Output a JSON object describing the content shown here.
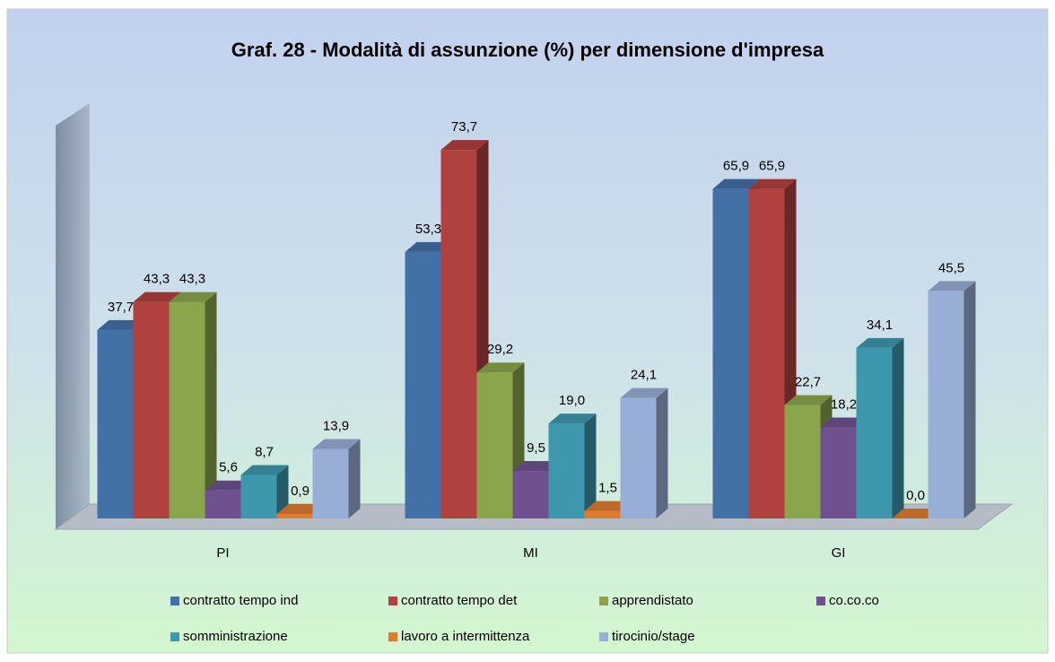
{
  "chart_data": {
    "type": "bar3d",
    "title": "Graf. 28 - Modalità di assunzione (%) per dimensione d'impresa",
    "categories": [
      "PI",
      "MI",
      "GI"
    ],
    "ylim": [
      0,
      80
    ],
    "legend": "bottom",
    "series": [
      {
        "name": "contratto tempo ind",
        "color": "#4470a8",
        "values": [
          37.7,
          53.3,
          65.9
        ],
        "value_labels": [
          "37,7",
          "53,3",
          "65,9"
        ]
      },
      {
        "name": "contratto tempo det",
        "color": "#b0413e",
        "values": [
          43.3,
          73.7,
          65.9
        ],
        "value_labels": [
          "43,3",
          "73,7",
          "65,9"
        ]
      },
      {
        "name": "apprendistato",
        "color": "#8ba54c",
        "values": [
          43.3,
          29.2,
          22.7
        ],
        "value_labels": [
          "43,3",
          "29,2",
          "22,7"
        ]
      },
      {
        "name": "co.co.co",
        "color": "#6f5190",
        "values": [
          5.6,
          9.5,
          18.2
        ],
        "value_labels": [
          "5,6",
          "9,5",
          "18,2"
        ]
      },
      {
        "name": "somministrazione",
        "color": "#3e98ad",
        "values": [
          8.7,
          19.0,
          34.1
        ],
        "value_labels": [
          "8,7",
          "19,0",
          "34,1"
        ]
      },
      {
        "name": "lavoro a intermittenza",
        "color": "#e07b2e",
        "values": [
          0.9,
          1.5,
          0.0
        ],
        "value_labels": [
          "0,9",
          "1,5",
          "0,0"
        ]
      },
      {
        "name": "tirocinio/stage",
        "color": "#98aed6",
        "values": [
          13.9,
          24.1,
          45.5
        ],
        "value_labels": [
          "13,9",
          "24,1",
          "45,5"
        ]
      }
    ]
  }
}
